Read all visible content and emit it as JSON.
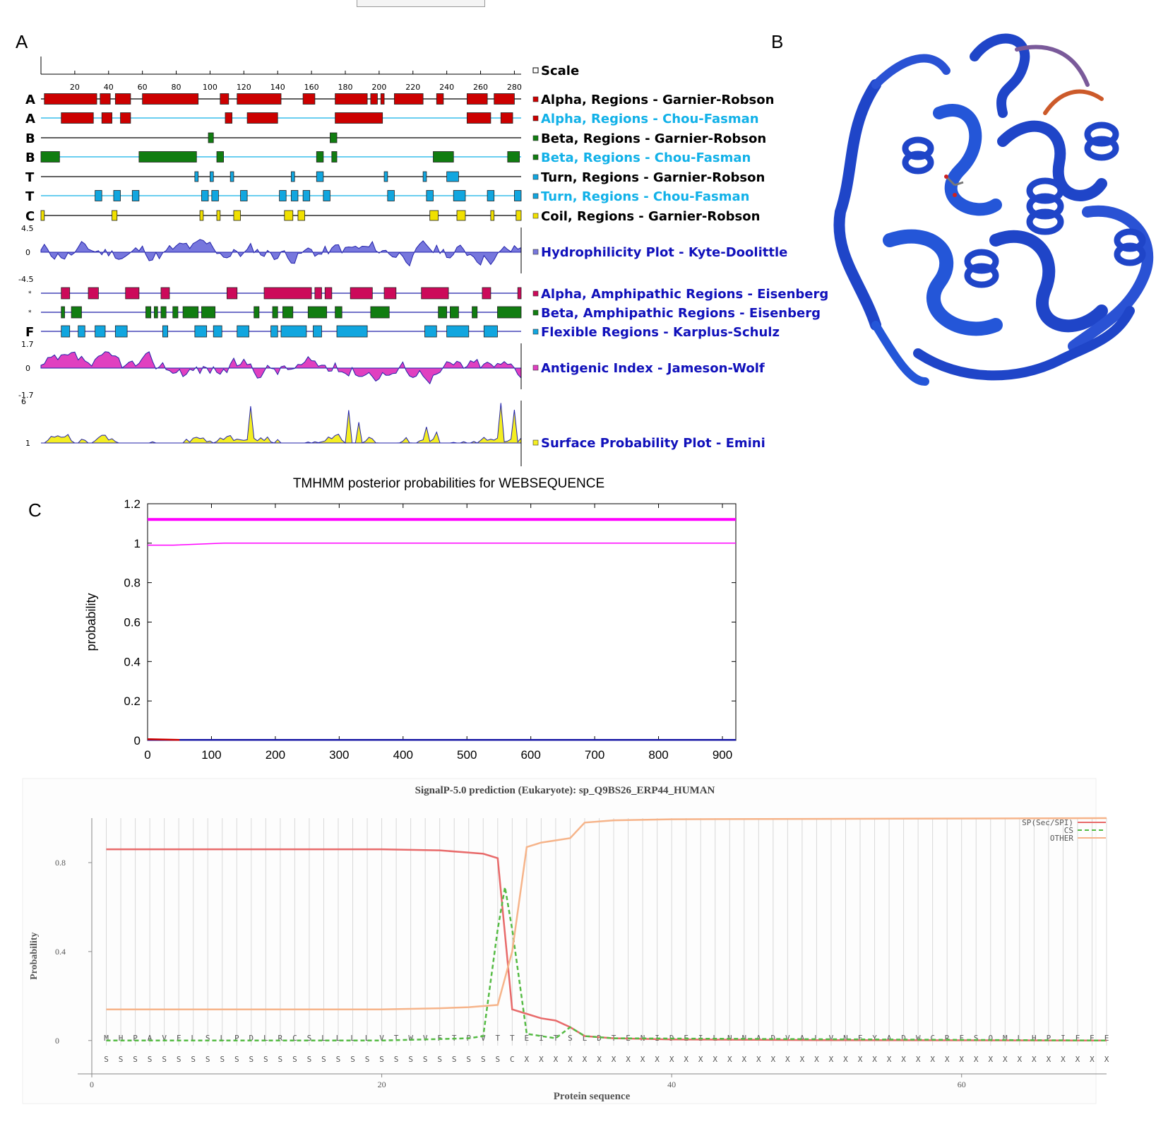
{
  "panels": {
    "a": "A",
    "b": "B",
    "c": "C"
  },
  "protean": {
    "scale_ticks": [
      "20",
      "40",
      "60",
      "80",
      "100",
      "120",
      "140",
      "160",
      "180",
      "200",
      "220",
      "240",
      "260",
      "280"
    ],
    "rows": [
      {
        "letter": "A",
        "label": "Alpha, Regions - Garnier-Robson",
        "color": "#cc0000",
        "text_color": "#000000",
        "line": "#000000",
        "segments": [
          [
            2,
            33
          ],
          [
            35,
            41
          ],
          [
            44,
            53
          ],
          [
            60,
            93
          ],
          [
            106,
            111
          ],
          [
            116,
            142
          ],
          [
            155,
            162
          ],
          [
            174,
            193
          ],
          [
            195,
            199
          ],
          [
            201,
            203
          ],
          [
            209,
            226
          ],
          [
            234,
            238
          ],
          [
            252,
            264
          ],
          [
            268,
            280
          ]
        ]
      },
      {
        "letter": "A",
        "label": "Alpha, Regions - Chou-Fasman",
        "color": "#cc0000",
        "text_color": "#11b1e8",
        "line": "#11b1e8",
        "segments": [
          [
            12,
            31
          ],
          [
            36,
            42
          ],
          [
            47,
            53
          ],
          [
            109,
            113
          ],
          [
            122,
            140
          ],
          [
            174,
            202
          ],
          [
            252,
            266
          ],
          [
            272,
            279
          ]
        ]
      },
      {
        "letter": "B",
        "label": "Beta, Regions - Garnier-Robson",
        "color": "#117d11",
        "text_color": "#000000",
        "line": "#000000",
        "segments": [
          [
            99,
            102
          ],
          [
            171,
            175
          ]
        ]
      },
      {
        "letter": "B",
        "label": "Beta, Regions - Chou-Fasman",
        "color": "#117d11",
        "text_color": "#11b1e8",
        "line": "#11b1e8",
        "segments": [
          [
            0,
            11
          ],
          [
            58,
            92
          ],
          [
            104,
            108
          ],
          [
            163,
            167
          ],
          [
            172,
            175
          ],
          [
            232,
            244
          ],
          [
            276,
            283
          ]
        ]
      },
      {
        "letter": "T",
        "label": "Turn, Regions - Garnier-Robson",
        "color": "#11a6df",
        "text_color": "#000000",
        "line": "#000000",
        "segments": [
          [
            91,
            93
          ],
          [
            100,
            102
          ],
          [
            112,
            114
          ],
          [
            148,
            150
          ],
          [
            163,
            167
          ],
          [
            203,
            205
          ],
          [
            226,
            228
          ],
          [
            240,
            247
          ]
        ]
      },
      {
        "letter": "T",
        "label": "Turn, Regions - Chou-Fasman",
        "color": "#11a6df",
        "text_color": "#11b1e8",
        "line": "#11b1e8",
        "segments": [
          [
            32,
            36
          ],
          [
            43,
            47
          ],
          [
            54,
            58
          ],
          [
            95,
            99
          ],
          [
            101,
            105
          ],
          [
            118,
            122
          ],
          [
            141,
            145
          ],
          [
            148,
            152
          ],
          [
            155,
            159
          ],
          [
            167,
            171
          ],
          [
            205,
            209
          ],
          [
            228,
            232
          ],
          [
            244,
            251
          ],
          [
            264,
            268
          ],
          [
            280,
            284
          ]
        ]
      },
      {
        "letter": "C",
        "label": "Coil, Regions - Garnier-Robson",
        "color": "#f0e000",
        "text_color": "#000000",
        "line": "#000000",
        "segments": [
          [
            0,
            2
          ],
          [
            42,
            45
          ],
          [
            94,
            96
          ],
          [
            104,
            106
          ],
          [
            114,
            118
          ],
          [
            144,
            149
          ],
          [
            152,
            156
          ],
          [
            230,
            235
          ],
          [
            246,
            251
          ],
          [
            266,
            268
          ],
          [
            281,
            284
          ]
        ]
      },
      {
        "letter": "",
        "label": "Alpha, Amphipathic Regions - Eisenberg",
        "color": "#cc0a5a",
        "text_color": "#1111bb",
        "line": "#2222aa",
        "segments": [
          [
            12,
            17
          ],
          [
            28,
            34
          ],
          [
            50,
            58
          ],
          [
            71,
            76
          ],
          [
            110,
            116
          ],
          [
            132,
            160
          ],
          [
            162,
            166
          ],
          [
            168,
            172
          ],
          [
            183,
            196
          ],
          [
            203,
            210
          ],
          [
            225,
            241
          ],
          [
            261,
            266
          ],
          [
            282,
            284
          ]
        ]
      },
      {
        "letter": "",
        "label": "Beta, Amphipathic Regions - Eisenberg",
        "color": "#117d11",
        "text_color": "#1111bb",
        "line": "#2222aa",
        "segments": [
          [
            12,
            14
          ],
          [
            18,
            24
          ],
          [
            62,
            65
          ],
          [
            67,
            69
          ],
          [
            71,
            74
          ],
          [
            78,
            81
          ],
          [
            84,
            93
          ],
          [
            95,
            103
          ],
          [
            126,
            129
          ],
          [
            137,
            140
          ],
          [
            143,
            149
          ],
          [
            158,
            169
          ],
          [
            174,
            178
          ],
          [
            195,
            206
          ],
          [
            235,
            240
          ],
          [
            242,
            247
          ],
          [
            255,
            258
          ],
          [
            270,
            284
          ]
        ]
      },
      {
        "letter": "F",
        "label": "Flexible Regions - Karplus-Schulz",
        "color": "#11a6df",
        "text_color": "#1111bb",
        "line": "#2222aa",
        "segments": [
          [
            12,
            17
          ],
          [
            22,
            26
          ],
          [
            32,
            38
          ],
          [
            44,
            51
          ],
          [
            72,
            75
          ],
          [
            91,
            98
          ],
          [
            102,
            107
          ],
          [
            116,
            123
          ],
          [
            136,
            140
          ],
          [
            142,
            157
          ],
          [
            161,
            166
          ],
          [
            175,
            193
          ],
          [
            227,
            234
          ],
          [
            240,
            253
          ],
          [
            262,
            270
          ]
        ]
      }
    ],
    "plots": [
      {
        "scale_top": "4.5",
        "scale_mid": "0",
        "scale_bot": "-4.5",
        "label": "Hydrophilicity Plot - Kyte-Doolittle",
        "fill": "#7777dd",
        "text_color": "#1111bb"
      },
      {
        "scale_top": "1.7",
        "scale_mid": "0",
        "scale_bot": "-1.7",
        "label": "Antigenic Index - Jameson-Wolf",
        "fill": "#e040c0",
        "text_color": "#1111bb"
      },
      {
        "scale_top": "6",
        "scale_mid": "1",
        "scale_bot": "",
        "label": "Surface Probability Plot - Emini",
        "fill": "#f4ee22",
        "text_color": "#1111bb"
      }
    ],
    "scale_label": "Scale"
  },
  "chart_data": [
    {
      "type": "line",
      "title": "TMHMM posterior probabilities for WEBSEQUENCE",
      "ylabel": "probability",
      "xlabel": "",
      "xlim": [
        0,
        921
      ],
      "ylim": [
        0,
        1.2
      ],
      "x_ticks": [
        "0",
        "100",
        "200",
        "300",
        "400",
        "500",
        "600",
        "700",
        "800",
        "900"
      ],
      "y_ticks": [
        "0",
        "0.2",
        "0.4",
        "0.6",
        "0.8",
        "1",
        "1.2"
      ],
      "series": [
        {
          "color": "#ff00ff",
          "x": [
            0,
            921
          ],
          "y": [
            1.12,
            1.12
          ]
        },
        {
          "color": "#ff00ff",
          "x": [
            0,
            40,
            120,
            921
          ],
          "y": [
            0.99,
            0.99,
            1.0,
            1.0
          ]
        },
        {
          "color": "#1a1aa6",
          "x": [
            0,
            921
          ],
          "y": [
            0.003,
            0.003
          ]
        },
        {
          "color": "#cc0000",
          "x": [
            0,
            50
          ],
          "y": [
            0.006,
            0.003
          ]
        }
      ]
    },
    {
      "type": "line",
      "title": "SignalP-5.0 prediction (Eukaryote):  sp_Q9BS26_ERP44_HUMAN",
      "xlabel": "Protein sequence",
      "ylabel": "Probability",
      "xlim": [
        0,
        70
      ],
      "ylim": [
        -0.15,
        1.0
      ],
      "x_ticks": [
        "0",
        "20",
        "40",
        "60"
      ],
      "y_ticks": [
        "0",
        "0.4",
        "0.8"
      ],
      "sequence": [
        "M",
        "H",
        "P",
        "A",
        "V",
        "F",
        "L",
        "S",
        "L",
        "P",
        "D",
        "L",
        "R",
        "C",
        "S",
        "L",
        "L",
        "L",
        "L",
        "V",
        "T",
        "W",
        "V",
        "F",
        "T",
        "P",
        "V",
        "T",
        "T",
        "E",
        "I",
        "T",
        "S",
        "L",
        "D",
        "T",
        "E",
        "N",
        "I",
        "D",
        "E",
        "I",
        "L",
        "N",
        "N",
        "A",
        "D",
        "V",
        "A",
        "L",
        "V",
        "N",
        "F",
        "Y",
        "A",
        "D",
        "W",
        "C",
        "R",
        "F",
        "S",
        "Q",
        "M",
        "L",
        "H",
        "P",
        "I",
        "F",
        "E",
        "E"
      ],
      "labels": [
        "S",
        "S",
        "S",
        "S",
        "S",
        "S",
        "S",
        "S",
        "S",
        "S",
        "S",
        "S",
        "S",
        "S",
        "S",
        "S",
        "S",
        "S",
        "S",
        "S",
        "S",
        "S",
        "S",
        "S",
        "S",
        "S",
        "S",
        "S",
        "C",
        "X",
        "X",
        "X",
        "X",
        "X",
        "X",
        "X",
        "X",
        "X",
        "X",
        "X",
        "X",
        "X",
        "X",
        "X",
        "X",
        "X",
        "X",
        "X",
        "X",
        "X",
        "X",
        "X",
        "X",
        "X",
        "X",
        "X",
        "X",
        "X",
        "X",
        "X",
        "X",
        "X",
        "X",
        "X",
        "X",
        "X",
        "X",
        "X",
        "X",
        "X"
      ],
      "series": [
        {
          "name": "SP(Sec/SPI)",
          "color": "#e86a6a",
          "dash": "",
          "x": [
            1,
            10,
            20,
            24,
            26,
            27,
            28,
            29,
            30,
            31,
            32,
            33,
            34,
            36,
            40,
            50,
            70
          ],
          "y": [
            0.86,
            0.86,
            0.86,
            0.855,
            0.845,
            0.84,
            0.82,
            0.14,
            0.12,
            0.1,
            0.09,
            0.06,
            0.02,
            0.01,
            0.005,
            0.002,
            0.0
          ]
        },
        {
          "name": "CS",
          "color": "#55bb44",
          "dash": "6,4",
          "x": [
            1,
            10,
            20,
            26,
            27,
            28,
            28.5,
            29,
            30,
            31,
            32,
            33,
            34,
            36,
            70
          ],
          "y": [
            0.0,
            0.0,
            0.0,
            0.01,
            0.02,
            0.5,
            0.69,
            0.5,
            0.03,
            0.02,
            0.01,
            0.06,
            0.02,
            0.01,
            0.0
          ]
        },
        {
          "name": "OTHER",
          "color": "#f6b48a",
          "dash": "",
          "x": [
            1,
            10,
            20,
            24,
            26,
            27,
            28,
            29,
            30,
            31,
            32,
            33,
            34,
            36,
            40,
            70
          ],
          "y": [
            0.14,
            0.14,
            0.14,
            0.145,
            0.15,
            0.155,
            0.16,
            0.4,
            0.87,
            0.89,
            0.9,
            0.91,
            0.98,
            0.99,
            0.995,
            1.0
          ]
        }
      ]
    }
  ]
}
